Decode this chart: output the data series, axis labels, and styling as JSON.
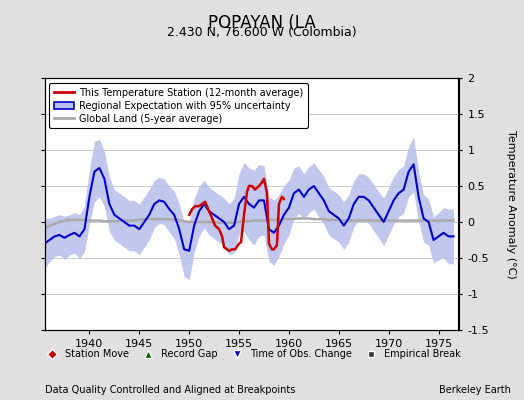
{
  "title": "POPAYAN (LA",
  "subtitle": "2.430 N, 76.600 W (Colombia)",
  "ylabel": "Temperature Anomaly (°C)",
  "xlabel_note": "Data Quality Controlled and Aligned at Breakpoints",
  "credit": "Berkeley Earth",
  "xlim": [
    1935.5,
    1977
  ],
  "ylim": [
    -1.5,
    2.0
  ],
  "yticks": [
    -1.5,
    -1.0,
    -0.5,
    0,
    0.5,
    1.0,
    1.5,
    2.0
  ],
  "xticks": [
    1940,
    1945,
    1950,
    1955,
    1960,
    1965,
    1970,
    1975
  ],
  "bg_color": "#e0e0e0",
  "plot_bg": "#ffffff",
  "grid_color": "#cccccc",
  "red_color": "#cc0000",
  "blue_color": "#0000cc",
  "fill_color": "#b8beea",
  "gray_color": "#aaaaaa",
  "legend_labels": [
    "This Temperature Station (12-month average)",
    "Regional Expectation with 95% uncertainty",
    "Global Land (5-year average)"
  ],
  "marker_legend": [
    {
      "label": "Station Move",
      "color": "#cc0000",
      "marker": "D"
    },
    {
      "label": "Record Gap",
      "color": "#006600",
      "marker": "^"
    },
    {
      "label": "Time of Obs. Change",
      "color": "#0000cc",
      "marker": "v"
    },
    {
      "label": "Empirical Break",
      "color": "#333333",
      "marker": "s"
    }
  ]
}
